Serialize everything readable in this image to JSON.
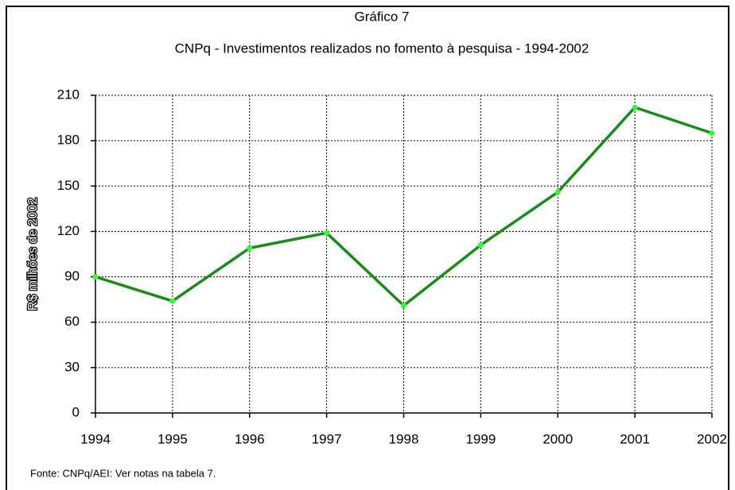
{
  "chart_data": {
    "type": "line",
    "title": "Gráfico 7",
    "subtitle": "CNPq - Investimentos realizados no fomento à pesquisa - 1994-2002",
    "y_label": "R$ milhões de 2002",
    "note": "Fonte: CNPq/AEI: Ver notas na tabela 7.",
    "categories": [
      "1994",
      "1995",
      "1996",
      "1997",
      "1998",
      "1999",
      "2000",
      "2001",
      "2002"
    ],
    "series": [
      {
        "name": "CNPq",
        "color": "#1a8a1a",
        "marker_color": "#33ff33",
        "values": [
          90,
          74,
          109,
          119,
          71,
          111,
          146,
          202,
          185
        ]
      }
    ],
    "ylim": [
      0,
      210
    ],
    "yticks": [
      0,
      30,
      60,
      90,
      120,
      150,
      180,
      210
    ],
    "grid": true
  }
}
